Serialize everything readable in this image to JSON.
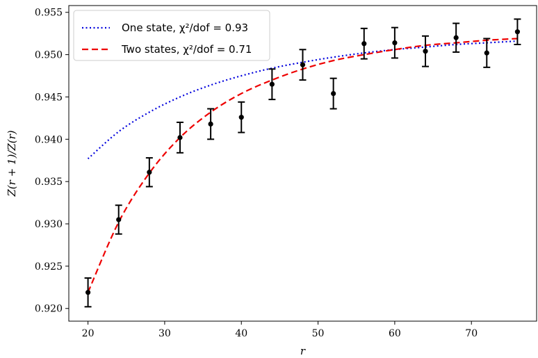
{
  "chart_data": {
    "type": "scatter",
    "xlabel": "r",
    "ylabel": "Z(r + 1)/Z(r)",
    "xlim": [
      17.5,
      78.5
    ],
    "ylim": [
      0.9185,
      0.9558
    ],
    "xticks": [
      20,
      30,
      40,
      50,
      60,
      70
    ],
    "yticks": [
      0.92,
      0.925,
      0.93,
      0.935,
      0.94,
      0.945,
      0.95,
      0.955
    ],
    "grid": false,
    "legend_position": "top-left",
    "data": {
      "x": [
        20,
        24,
        28,
        32,
        36,
        40,
        44,
        48,
        52,
        56,
        60,
        64,
        68,
        72,
        76
      ],
      "y": [
        0.9219,
        0.9305,
        0.9361,
        0.9402,
        0.9418,
        0.9426,
        0.9465,
        0.9488,
        0.9454,
        0.9513,
        0.9514,
        0.9504,
        0.952,
        0.9502,
        0.9527
      ],
      "yerr": [
        0.0017,
        0.0017,
        0.0017,
        0.0018,
        0.0018,
        0.0018,
        0.0018,
        0.0018,
        0.0018,
        0.0018,
        0.0018,
        0.0018,
        0.0017,
        0.0017,
        0.0015
      ],
      "color": "#000000"
    },
    "series": [
      {
        "name": "One state, χ²/dof = 0.93",
        "style": "dotted",
        "color": "#0000dd",
        "x": [
          20,
          24,
          28,
          32,
          36,
          40,
          44,
          48,
          52,
          56,
          60,
          64,
          68,
          72,
          76
        ],
        "y": [
          0.9377,
          0.9409,
          0.9432,
          0.945,
          0.9464,
          0.9475,
          0.9484,
          0.9491,
          0.9497,
          0.9502,
          0.9506,
          0.9509,
          0.9512,
          0.9514,
          0.9516
        ]
      },
      {
        "name": "Two states, χ²/dof = 0.71",
        "style": "dashed",
        "color": "#ee0000",
        "x": [
          20,
          24,
          28,
          32,
          36,
          40,
          44,
          48,
          52,
          56,
          60,
          64,
          68,
          72,
          76
        ],
        "y": [
          0.9219,
          0.9302,
          0.936,
          0.9402,
          0.9432,
          0.9454,
          0.947,
          0.9483,
          0.9493,
          0.95,
          0.9506,
          0.9511,
          0.9514,
          0.9517,
          0.9519
        ]
      }
    ]
  }
}
